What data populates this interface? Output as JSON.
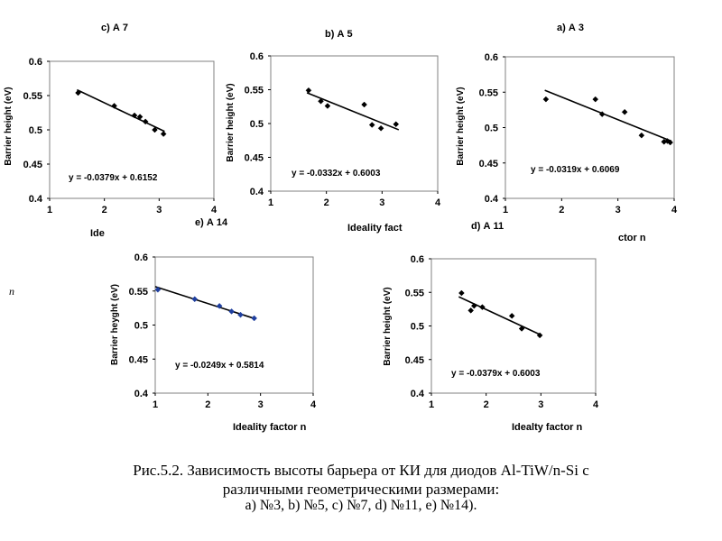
{
  "chart_data": [
    {
      "type": "scatter",
      "panel_title": "c) А 7",
      "ylabel": "Barrier height (eV)",
      "xlabel": "Ide",
      "equation": "y = -0.0379x + 0.6152",
      "xlim": [
        1,
        4
      ],
      "ylim": [
        0.4,
        0.6
      ],
      "x_ticks": [
        "1",
        "2",
        "3",
        "4"
      ],
      "y_ticks": [
        "0.4",
        "0.45",
        "0.5",
        "0.55",
        "0.6"
      ],
      "points": [
        [
          1.52,
          0.554
        ],
        [
          2.18,
          0.535
        ],
        [
          2.55,
          0.521
        ],
        [
          2.65,
          0.519
        ],
        [
          2.75,
          0.512
        ],
        [
          2.92,
          0.5
        ],
        [
          3.08,
          0.494
        ]
      ],
      "fit": {
        "slope": -0.0379,
        "intercept": 0.6152,
        "x_range": [
          1.5,
          3.1
        ]
      },
      "marker_color": "#000000"
    },
    {
      "type": "scatter",
      "panel_title": "b) А 5",
      "ylabel": "Barrier height (eV)",
      "xlabel": "Ideality fact",
      "equation": "y = -0.0332x + 0.6003",
      "xlim": [
        1,
        4
      ],
      "ylim": [
        0.4,
        0.6
      ],
      "x_ticks": [
        "1",
        "2",
        "3",
        "4"
      ],
      "y_ticks": [
        "0.4",
        "0.45",
        "0.5",
        "0.55",
        "0.6"
      ],
      "points": [
        [
          1.68,
          0.549
        ],
        [
          1.9,
          0.533
        ],
        [
          2.02,
          0.526
        ],
        [
          2.68,
          0.528
        ],
        [
          2.82,
          0.498
        ],
        [
          2.98,
          0.493
        ],
        [
          3.25,
          0.499
        ]
      ],
      "fit": {
        "slope": -0.0332,
        "intercept": 0.6003,
        "x_range": [
          1.65,
          3.3
        ]
      },
      "marker_color": "#000000"
    },
    {
      "type": "scatter",
      "panel_title": "a) А 3",
      "ylabel": "Barrier height (eV)",
      "xlabel": "ctor n",
      "equation": "y = -0.0319x + 0.6069",
      "xlim": [
        1,
        4
      ],
      "ylim": [
        0.4,
        0.6
      ],
      "x_ticks": [
        "1",
        "2",
        "3",
        "4"
      ],
      "y_ticks": [
        "0.4",
        "0.45",
        "0.5",
        "0.55",
        "0.6"
      ],
      "points": [
        [
          1.72,
          0.54
        ],
        [
          2.6,
          0.54
        ],
        [
          2.72,
          0.519
        ],
        [
          3.12,
          0.522
        ],
        [
          3.42,
          0.489
        ],
        [
          3.82,
          0.48
        ],
        [
          3.88,
          0.481
        ],
        [
          3.93,
          0.479
        ]
      ],
      "fit": {
        "slope": -0.0319,
        "intercept": 0.6069,
        "x_range": [
          1.7,
          3.95
        ]
      },
      "marker_color": "#000000"
    },
    {
      "type": "scatter",
      "panel_title": "e) А 14",
      "ylabel": "Barrier heyght (eV)",
      "xlabel": "Ideality factor n",
      "equation": "y = -0.0249x + 0.5814",
      "xlim": [
        1,
        4
      ],
      "ylim": [
        0.4,
        0.6
      ],
      "x_ticks": [
        "1",
        "2",
        "3",
        "4"
      ],
      "y_ticks": [
        "0.4",
        "0.45",
        "0.5",
        "0.55",
        "0.6"
      ],
      "points": [
        [
          1.05,
          0.552
        ],
        [
          1.75,
          0.538
        ],
        [
          2.22,
          0.528
        ],
        [
          2.45,
          0.52
        ],
        [
          2.62,
          0.515
        ],
        [
          2.88,
          0.51
        ]
      ],
      "fit": {
        "slope": -0.0249,
        "intercept": 0.5814,
        "x_range": [
          1.0,
          2.9
        ]
      },
      "marker_color": "#1f3f9f"
    },
    {
      "type": "scatter",
      "panel_title": "d) А 11",
      "ylabel": "Barrier height (eV)",
      "xlabel": "Idealty factor n",
      "equation": "y = -0.0379x + 0.6003",
      "xlim": [
        1,
        4
      ],
      "ylim": [
        0.4,
        0.6
      ],
      "x_ticks": [
        "1",
        "2",
        "3",
        "4"
      ],
      "y_ticks": [
        "0.4",
        "0.45",
        "0.5",
        "0.55",
        "0.6"
      ],
      "points": [
        [
          1.55,
          0.549
        ],
        [
          1.72,
          0.523
        ],
        [
          1.78,
          0.53
        ],
        [
          1.93,
          0.528
        ],
        [
          2.47,
          0.515
        ],
        [
          2.65,
          0.496
        ],
        [
          2.98,
          0.486
        ]
      ],
      "fit": {
        "slope": -0.0379,
        "intercept": 0.6003,
        "x_range": [
          1.5,
          3.0
        ]
      },
      "marker_color": "#000000"
    }
  ],
  "margin_note": "n",
  "caption": {
    "line1": "Рис.5.2.  Зависимость высоты барьера от КИ для диодов Al-TiW/n-Si с",
    "line2": "различными геометрическими размерами:",
    "line3": "а)  №3, b)  №5, c)  №7, d)  №11, e)  №14)."
  }
}
